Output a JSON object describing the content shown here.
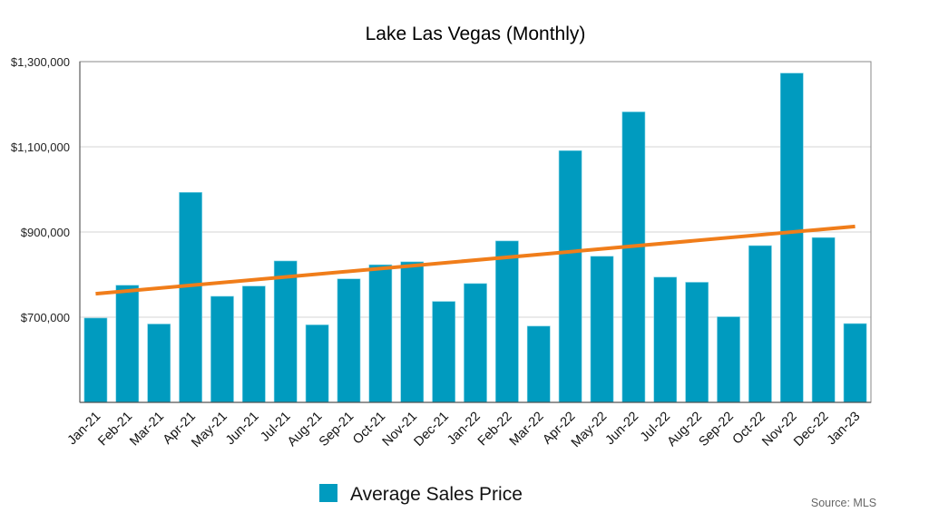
{
  "chart_data": {
    "type": "bar",
    "title": "Lake Las Vegas (Monthly)",
    "xlabel": "",
    "ylabel": "",
    "ylim": [
      500000,
      1300000
    ],
    "yticks": [
      700000,
      900000,
      1100000,
      1300000
    ],
    "ytick_labels": [
      "$700,000",
      "$900,000",
      "$1,100,000",
      "$1,300,000"
    ],
    "grid": true,
    "categories": [
      "Jan-21",
      "Feb-21",
      "Mar-21",
      "Apr-21",
      "May-21",
      "Jun-21",
      "Jul-21",
      "Aug-21",
      "Sep-21",
      "Oct-21",
      "Nov-21",
      "Dec-21",
      "Jan-22",
      "Feb-22",
      "Mar-22",
      "Apr-22",
      "May-22",
      "Jun-22",
      "Jul-22",
      "Aug-22",
      "Sep-22",
      "Oct-22",
      "Nov-22",
      "Dec-22",
      "Jan-23"
    ],
    "series": [
      {
        "name": "Average Sales Price",
        "color": "#009bbf",
        "values": [
          698000,
          775000,
          684000,
          993000,
          749000,
          773000,
          832000,
          682000,
          790000,
          823000,
          830000,
          737000,
          779000,
          879000,
          679000,
          1091000,
          843000,
          1182000,
          794000,
          782000,
          701000,
          868000,
          1273000,
          887000,
          685000
        ]
      }
    ],
    "trendline": {
      "type": "linear",
      "color": "#f07d1a",
      "start_value": 755000,
      "end_value": 913000
    },
    "legend": {
      "position": "bottom-center",
      "entries": [
        "Average Sales Price"
      ]
    },
    "annotations": [
      "Source: MLS"
    ]
  }
}
